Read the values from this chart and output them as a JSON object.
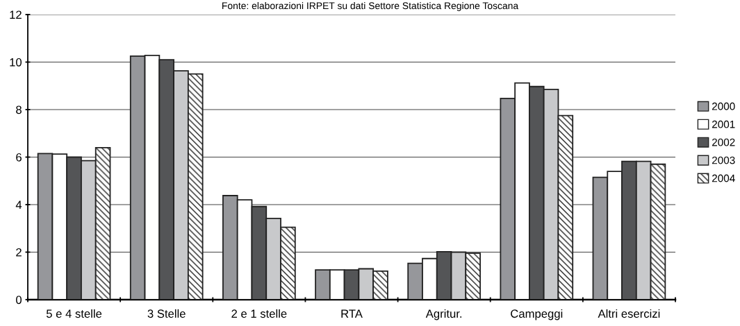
{
  "chart_data": {
    "type": "bar",
    "title": "Fonte: elaborazioni IRPET su dati Settore Statistica Regione Toscana",
    "categories": [
      "5 e 4 stelle",
      "3 Stelle",
      "2 e 1 stelle",
      "RTA",
      "Agritur.",
      "Campeggi",
      "Altri esercizi"
    ],
    "series": [
      {
        "name": "2000",
        "color": "#96979b",
        "values": [
          6.15,
          10.25,
          4.38,
          1.25,
          1.53,
          8.47,
          5.15
        ]
      },
      {
        "name": "2001",
        "color": "#ffffff",
        "values": [
          6.13,
          10.28,
          4.2,
          1.25,
          1.73,
          9.12,
          5.4
        ]
      },
      {
        "name": "2002",
        "color": "#545557",
        "values": [
          6.0,
          10.1,
          3.92,
          1.25,
          2.02,
          8.97,
          5.82
        ]
      },
      {
        "name": "2003",
        "color": "#c8c9cb",
        "values": [
          5.85,
          9.63,
          3.42,
          1.3,
          2.0,
          8.85,
          5.82
        ]
      },
      {
        "name": "2004",
        "color": "#222222",
        "values": [
          6.4,
          9.5,
          3.05,
          1.2,
          1.95,
          7.75,
          5.7
        ]
      }
    ],
    "ylim": [
      0,
      12
    ],
    "yticks": [
      0,
      2,
      4,
      6,
      8,
      10,
      12
    ],
    "grid": "y",
    "legend": "right"
  }
}
